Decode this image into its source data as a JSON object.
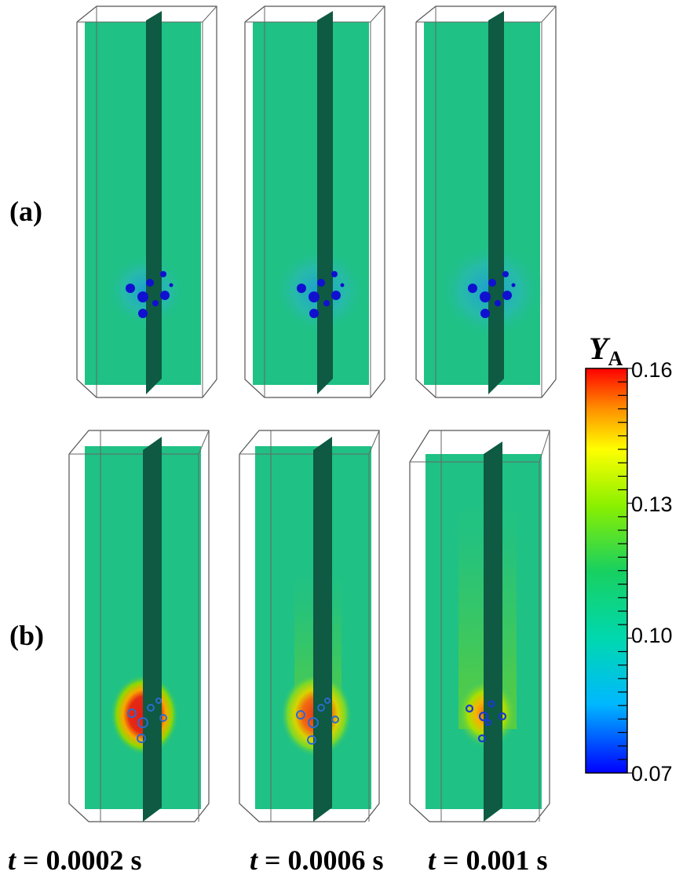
{
  "row_labels": {
    "a": "(a)",
    "b": "(b)"
  },
  "time_labels": [
    {
      "var": "t",
      "rest": " = 0.0002 s"
    },
    {
      "var": "t",
      "rest": " = 0.0006 s"
    },
    {
      "var": "t",
      "rest": " = 0.001 s"
    }
  ],
  "colorbar": {
    "symbol": "Y",
    "subscript": "A",
    "ticks": [
      "0.16",
      "0.13",
      "0.10",
      "0.07"
    ],
    "min": 0.07,
    "max": 0.16,
    "colormap": [
      "#0000ff",
      "#00d8ff",
      "#00c060",
      "#80ff00",
      "#ffff00",
      "#ff8000",
      "#ff0000"
    ]
  },
  "colors": {
    "background_field": "#1fc185",
    "dark_plane": "#0e5a43",
    "bubble": "#1010d0",
    "enriched_core": "#e8201a"
  }
}
